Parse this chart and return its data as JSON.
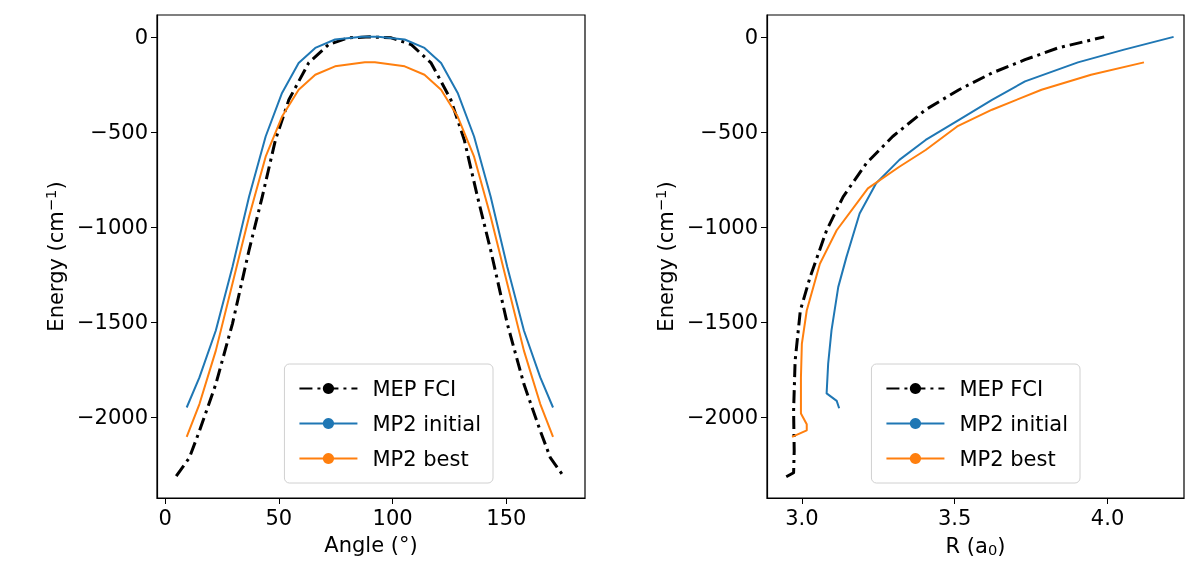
{
  "chart_data": [
    {
      "type": "line",
      "xlabel": "Angle (°)",
      "ylabel": "Energy (cm$^{−1}$)",
      "xlim": [
        -3.55,
        184.55
      ],
      "ylim": [
        -2425,
        115
      ],
      "xticks": [
        0,
        50,
        100,
        150
      ],
      "yticks": [
        0,
        {
          "value": -500,
          "label": "−500"
        },
        {
          "value": -1000,
          "label": "−1000"
        },
        {
          "value": -1500,
          "label": "−1500"
        },
        {
          "value": -2000,
          "label": "−2000"
        }
      ],
      "grid": false,
      "legend": "bottom right",
      "marker": "none",
      "series": [
        {
          "name": "MEP FCI",
          "color": "#000000",
          "line_style": "dashdot",
          "x": [
            4.9,
            10.7,
            15.1,
            22.3,
            29.6,
            36.9,
            42.7,
            48.5,
            54.4,
            63.1,
            71.9,
            80.6,
            90,
            99.4,
            108.1,
            116.9,
            125.6,
            131.5,
            137.3,
            143.1,
            150.4,
            157.7,
            164.9,
            169.3,
            175.1
          ],
          "values": [
            -2310,
            -2213,
            -2072,
            -1826,
            -1509,
            -1122,
            -841,
            -542,
            -331,
            -137,
            -40,
            -5,
            0,
            -5,
            -40,
            -137,
            -331,
            -542,
            -841,
            -1122,
            -1509,
            -1826,
            -2072,
            -2213,
            -2310
          ]
        },
        {
          "name": "MP2 initial",
          "color": "#1f77b4",
          "line_style": "solid",
          "x": [
            9.5,
            15.1,
            22.3,
            29.6,
            36.9,
            44.2,
            51.4,
            58.7,
            66,
            74.7,
            86.4,
            93.6,
            105.3,
            114,
            121.3,
            128.6,
            135.8,
            143.1,
            150.4,
            157.7,
            164.9,
            170.5
          ],
          "values": [
            -1949,
            -1791,
            -1544,
            -1210,
            -841,
            -524,
            -295,
            -137,
            -58,
            -14,
            0,
            0,
            -14,
            -58,
            -137,
            -295,
            -524,
            -841,
            -1210,
            -1544,
            -1791,
            -1949
          ]
        },
        {
          "name": "MP2 best",
          "color": "#ff7f0e",
          "line_style": "solid",
          "x": [
            9.5,
            15.1,
            22.3,
            29.6,
            36.9,
            44.2,
            51.4,
            58.7,
            66,
            74.7,
            87.8,
            92.2,
            105.3,
            114,
            121.3,
            128.6,
            135.8,
            143.1,
            150.4,
            157.7,
            164.9,
            170.5
          ],
          "values": [
            -2104,
            -1931,
            -1650,
            -1298,
            -946,
            -630,
            -419,
            -278,
            -199,
            -155,
            -134,
            -134,
            -155,
            -199,
            -278,
            -419,
            -630,
            -946,
            -1298,
            -1650,
            -1931,
            -2104
          ]
        }
      ]
    },
    {
      "type": "line",
      "xlabel": "R (a$_{0}$)",
      "ylabel": "Energy (cm$^{−1}$)",
      "xlim": [
        2.886,
        4.25
      ],
      "ylim": [
        -2425,
        115
      ],
      "xticks": [
        {
          "value": 3,
          "label": "3.0"
        },
        3.5,
        {
          "value": 4,
          "label": "4.0"
        }
      ],
      "yticks": [
        0,
        {
          "value": -500,
          "label": "−500"
        },
        {
          "value": -1000,
          "label": "−1000"
        },
        {
          "value": -1500,
          "label": "−1500"
        },
        {
          "value": -2000,
          "label": "−2000"
        }
      ],
      "grid": false,
      "legend": "bottom right",
      "marker": "none",
      "series": [
        {
          "name": "MEP FCI",
          "color": "#000000",
          "line_style": "dashdot",
          "x": [
            2.949,
            2.973,
            2.975,
            2.973,
            2.978,
            2.995,
            3.027,
            3.081,
            3.135,
            3.211,
            3.297,
            3.405,
            3.514,
            3.622,
            3.73,
            3.838,
            3.989
          ],
          "values": [
            -2313,
            -2292,
            -2178,
            -1967,
            -1703,
            -1439,
            -1263,
            -1017,
            -841,
            -665,
            -524,
            -383,
            -278,
            -190,
            -120,
            -58,
            0
          ]
        },
        {
          "name": "MP2 initial",
          "color": "#1f77b4",
          "line_style": "solid",
          "x": [
            3.122,
            3.114,
            3.081,
            3.086,
            3.097,
            3.119,
            3.146,
            3.189,
            3.243,
            3.319,
            3.405,
            3.514,
            3.622,
            3.73,
            3.903,
            4.054,
            4.216
          ],
          "values": [
            -1953,
            -1914,
            -1875,
            -1720,
            -1544,
            -1316,
            -1157,
            -929,
            -770,
            -647,
            -542,
            -436,
            -331,
            -234,
            -134,
            -67,
            0
          ]
        },
        {
          "name": "MP2 best",
          "color": "#ff7f0e",
          "line_style": "solid",
          "x": [
            2.968,
            3.016,
            3.016,
            2.997,
            2.997,
            3.0,
            3.016,
            3.059,
            3.114,
            3.216,
            3.319,
            3.405,
            3.508,
            3.622,
            3.784,
            3.946,
            4.119
          ],
          "values": [
            -2104,
            -2069,
            -2037,
            -1981,
            -1791,
            -1615,
            -1439,
            -1193,
            -1017,
            -797,
            -683,
            -595,
            -471,
            -383,
            -278,
            -199,
            -134
          ]
        }
      ]
    }
  ]
}
